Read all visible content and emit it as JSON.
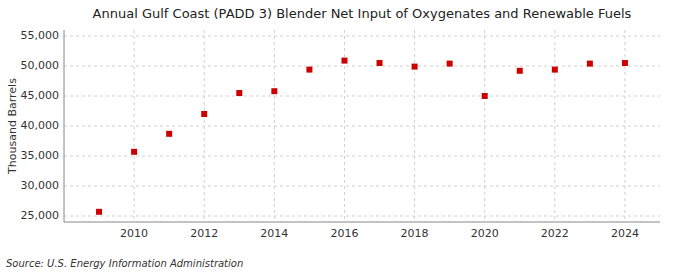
{
  "chart_data": {
    "type": "scatter",
    "title": "Annual Gulf Coast (PADD 3) Blender Net Input of Oxygenates and Renewable Fuels",
    "ylabel": "Thousand Barrels",
    "source": "Source: U.S. Energy Information Administration",
    "x": [
      2009,
      2010,
      2011,
      2012,
      2013,
      2014,
      2015,
      2016,
      2017,
      2018,
      2019,
      2020,
      2021,
      2022,
      2023,
      2024
    ],
    "values": [
      25700,
      35700,
      38700,
      42000,
      45500,
      45800,
      49400,
      50900,
      50500,
      49900,
      50400,
      45000,
      49200,
      49400,
      50400,
      50500
    ],
    "color": "#cc0000",
    "marker": "square",
    "xlim": [
      2008,
      2025
    ],
    "xticks": [
      2010,
      2012,
      2014,
      2016,
      2018,
      2020,
      2022,
      2024
    ],
    "ylim": [
      24000,
      56000
    ],
    "yticks": [
      {
        "value": 25000,
        "label": "25,000"
      },
      {
        "value": 30000,
        "label": "30,000"
      },
      {
        "value": 35000,
        "label": "35,000"
      },
      {
        "value": 40000,
        "label": "40,000"
      },
      {
        "value": 45000,
        "label": "45,000"
      },
      {
        "value": 50000,
        "label": "50,000"
      },
      {
        "value": 55000,
        "label": "55,000"
      }
    ],
    "grid": true
  }
}
